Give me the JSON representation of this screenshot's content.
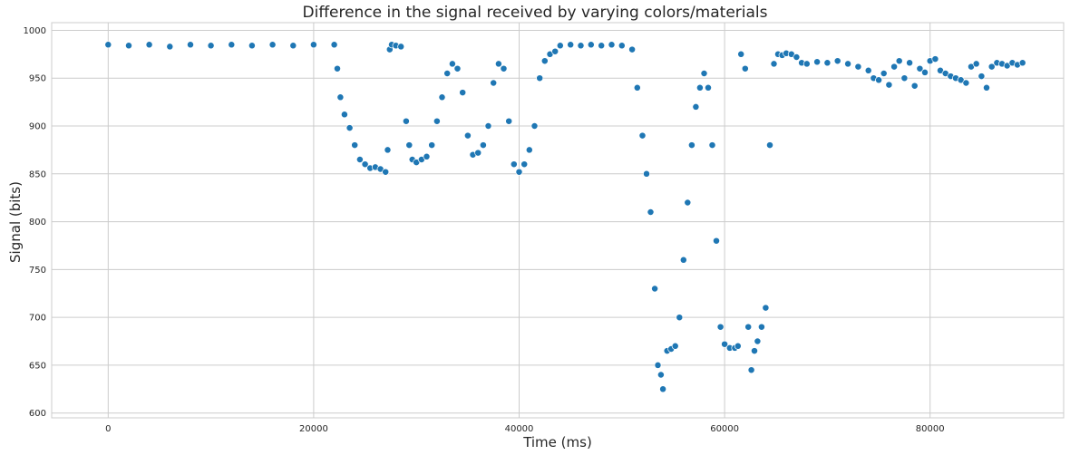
{
  "chart_data": {
    "type": "scatter",
    "title": "Difference in the signal received by varying colors/materials",
    "xlabel": "Time (ms)",
    "ylabel": "Signal (bits)",
    "xlim": [
      -5500,
      93000
    ],
    "ylim": [
      595,
      1008
    ],
    "xticks": [
      0,
      20000,
      40000,
      60000,
      80000
    ],
    "yticks": [
      600,
      650,
      700,
      750,
      800,
      850,
      900,
      950,
      1000
    ],
    "grid": true,
    "marker_color": "#1f77b4",
    "marker_edge_color": "#ffffff",
    "series": [
      {
        "x": [
          0,
          2000,
          4000,
          6000,
          8000,
          10000,
          12000,
          14000,
          16000,
          18000,
          20000,
          22000,
          22300,
          22600,
          23000,
          23500,
          24000,
          24500,
          25000,
          25500,
          26000,
          26500,
          27000,
          27200,
          27400,
          27600,
          28000,
          28500,
          29000,
          29300,
          29600,
          30000,
          30500,
          31000,
          31500,
          32000,
          32500,
          33000,
          33500,
          34000,
          34500,
          35000,
          35500,
          36000,
          36500,
          37000,
          37500,
          38000,
          38500,
          39000,
          39500,
          40000,
          40500,
          41000,
          41500,
          42000,
          42500,
          43000,
          43500,
          44000,
          45000,
          46000,
          47000,
          48000,
          49000,
          50000,
          51000,
          51500,
          52000,
          52400,
          52800,
          53200,
          53500,
          53800,
          54000,
          54400,
          54800,
          55200,
          55600,
          56000,
          56400,
          56800,
          57200,
          57600,
          58000,
          58400,
          58800,
          59200,
          59600,
          60000,
          60500,
          61000,
          61300,
          61600,
          62000,
          62300,
          62600,
          62900,
          63200,
          63600,
          64000,
          64400,
          64800,
          65200,
          65600,
          66000,
          66500,
          67000,
          67500,
          68000,
          69000,
          70000,
          71000,
          72000,
          73000,
          74000,
          74500,
          75000,
          75500,
          76000,
          76500,
          77000,
          77500,
          78000,
          78500,
          79000,
          79500,
          80000,
          80500,
          81000,
          81500,
          82000,
          82500,
          83000,
          83500,
          84000,
          84500,
          85000,
          85500,
          86000,
          86500,
          87000,
          87500,
          88000,
          88500,
          89000
        ],
        "y": [
          985,
          984,
          985,
          983,
          985,
          984,
          985,
          984,
          985,
          984,
          985,
          985,
          960,
          930,
          912,
          898,
          880,
          865,
          860,
          856,
          857,
          855,
          852,
          875,
          980,
          985,
          984,
          983,
          905,
          880,
          865,
          862,
          865,
          868,
          880,
          905,
          930,
          955,
          965,
          960,
          935,
          890,
          870,
          872,
          880,
          900,
          945,
          965,
          960,
          905,
          860,
          852,
          860,
          875,
          900,
          950,
          968,
          975,
          978,
          984,
          985,
          984,
          985,
          984,
          985,
          984,
          980,
          940,
          890,
          850,
          810,
          730,
          650,
          640,
          625,
          665,
          667,
          670,
          700,
          760,
          820,
          880,
          920,
          940,
          955,
          940,
          880,
          780,
          690,
          672,
          668,
          668,
          670,
          975,
          960,
          690,
          645,
          665,
          675,
          690,
          710,
          880,
          965,
          975,
          974,
          976,
          975,
          972,
          966,
          965,
          967,
          966,
          968,
          965,
          962,
          958,
          950,
          948,
          955,
          943,
          962,
          968,
          950,
          966,
          942,
          960,
          956,
          968,
          970,
          958,
          955,
          952,
          950,
          948,
          945,
          962,
          965,
          952,
          940,
          962,
          966,
          965,
          963,
          966,
          964,
          966
        ]
      }
    ]
  }
}
